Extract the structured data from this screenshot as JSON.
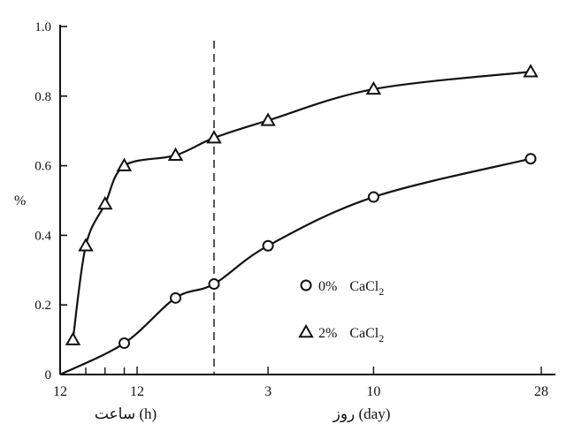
{
  "chart_data": {
    "type": "line",
    "ylabel": "%",
    "ylim": [
      0,
      1.0
    ],
    "yticks": [
      "0",
      "0.2",
      "0.4",
      "0.6",
      "0.8",
      "1.0"
    ],
    "x_axis": {
      "tick_labels": [
        "12",
        "12",
        "3",
        "10",
        "28"
      ],
      "hours_caption": "ساعت (h)",
      "days_caption": "روز (day)",
      "divider": "dashed"
    },
    "grid": false,
    "legend_position": "bottom-right",
    "series": [
      {
        "name": "0% CaCl2",
        "marker": "circle",
        "x": [
          "0h",
          "10h",
          "18h",
          "1d",
          "3d",
          "10d",
          "28d"
        ],
        "y": [
          0.0,
          0.09,
          0.22,
          0.26,
          0.37,
          0.51,
          0.62
        ]
      },
      {
        "name": "2% CaCl2",
        "marker": "triangle",
        "x": [
          "2h",
          "4h",
          "7h",
          "10h",
          "18h",
          "1d",
          "3d",
          "10d",
          "28d"
        ],
        "y": [
          0.1,
          0.37,
          0.49,
          0.6,
          0.63,
          0.68,
          0.73,
          0.82,
          0.87
        ]
      }
    ],
    "legend": [
      {
        "marker": "circle",
        "label": "0%",
        "compound": "CaCl",
        "subscript": "2"
      },
      {
        "marker": "triangle",
        "label": "2%",
        "compound": "CaCl",
        "subscript": "2"
      }
    ]
  }
}
